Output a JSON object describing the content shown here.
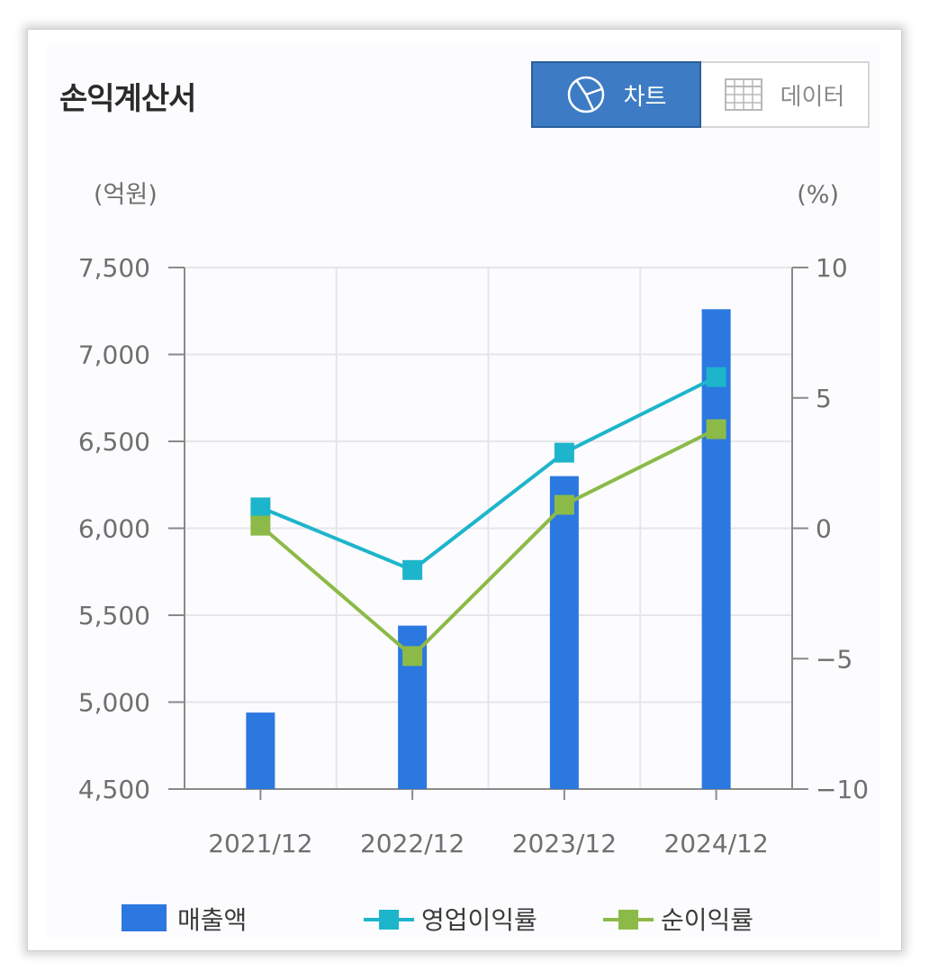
{
  "header": {
    "title": "손익계산서",
    "chart_tab_label": "차트",
    "data_tab_label": "데이터",
    "chart_tab_icon": "pie-chart-icon",
    "data_tab_icon": "table-grid-icon"
  },
  "chart_data": {
    "type": "bar+line",
    "categories": [
      "2021/12",
      "2022/12",
      "2023/12",
      "2024/12"
    ],
    "y_left": {
      "unit_label": "(억원)",
      "range": [
        4500,
        7500
      ],
      "ticks": [
        4500,
        5000,
        5500,
        6000,
        6500,
        7000,
        7500
      ],
      "tick_labels": [
        "4,500",
        "5,000",
        "5,500",
        "6,000",
        "6,500",
        "7,000",
        "7,500"
      ]
    },
    "y_right": {
      "unit_label": "(%)",
      "range": [
        -10,
        10
      ],
      "ticks": [
        -10,
        -5,
        0,
        5,
        10
      ],
      "tick_labels": [
        "−10",
        "−5",
        "0",
        "5",
        "10"
      ]
    },
    "grid": true,
    "series": [
      {
        "name": "매출액",
        "type": "bar",
        "axis": "left",
        "color": "#2b78e0",
        "values": [
          4940,
          5440,
          6300,
          7260
        ]
      },
      {
        "name": "영업이익률",
        "type": "line",
        "axis": "right",
        "color": "#1db5cc",
        "values": [
          0.8,
          -1.6,
          2.9,
          5.8
        ]
      },
      {
        "name": "순이익률",
        "type": "line",
        "axis": "right",
        "color": "#8cba48",
        "values": [
          0.1,
          -4.9,
          0.9,
          3.8
        ]
      }
    ],
    "legend_position": "bottom"
  }
}
